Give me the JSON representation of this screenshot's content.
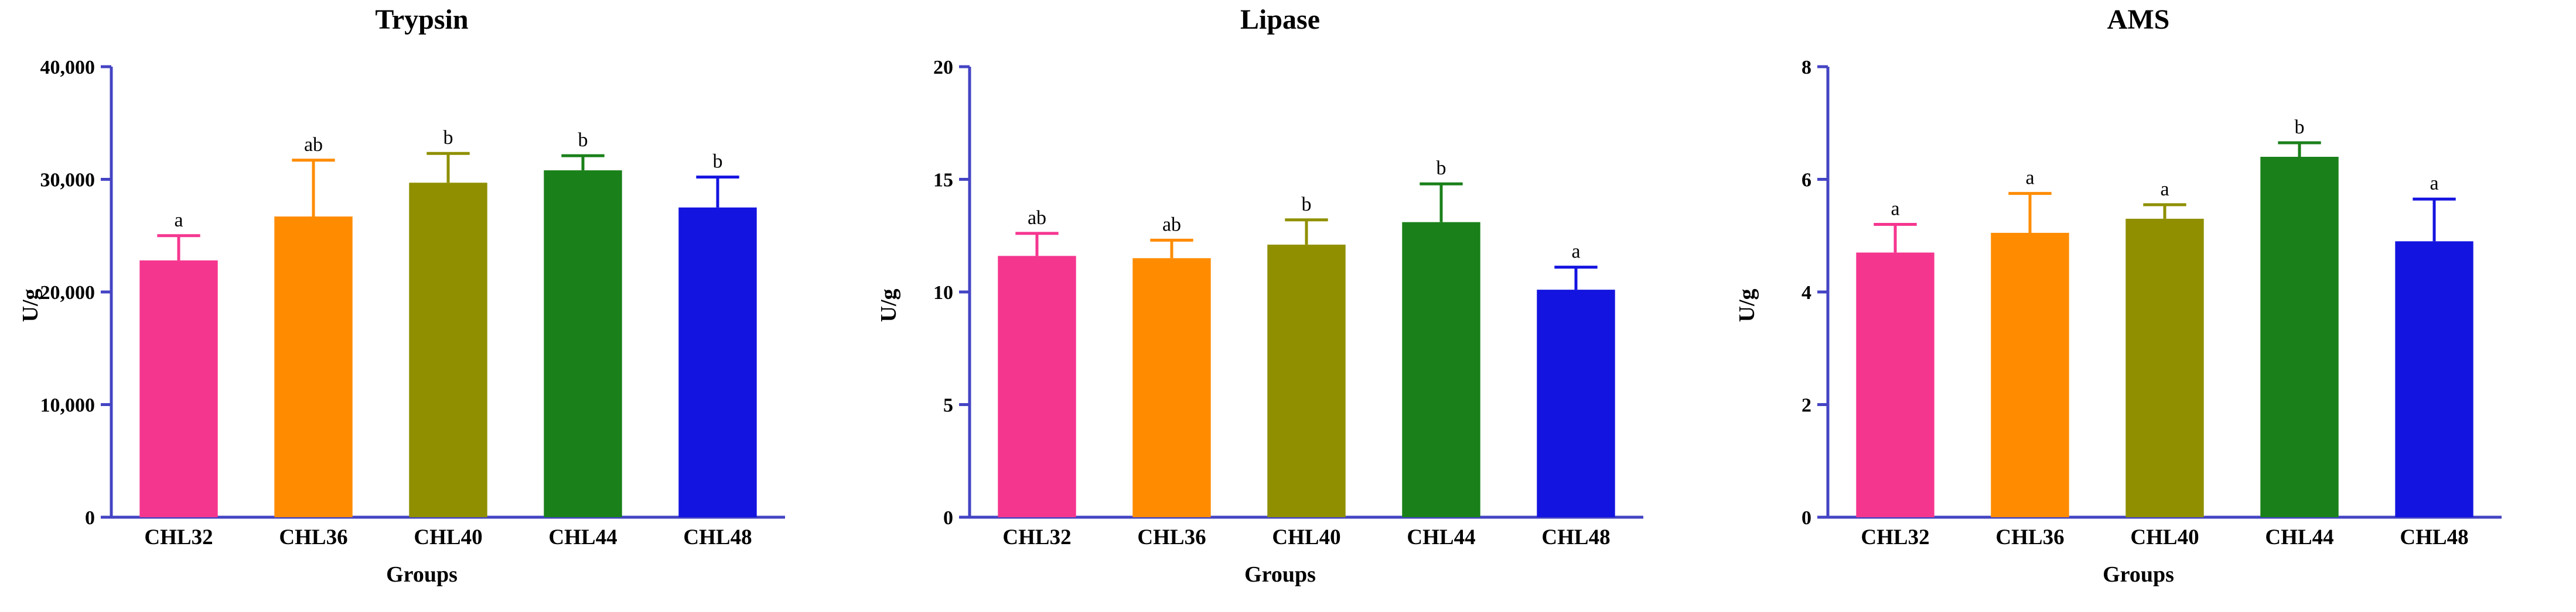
{
  "page": {
    "background": "#FFFFFF",
    "axis_color": "#4444C4",
    "text_color": "#000000"
  },
  "chart_data": [
    {
      "type": "bar",
      "title": "Trypsin",
      "xlabel": "Groups",
      "ylabel": "U/g",
      "categories": [
        "CHL32",
        "CHL36",
        "CHL40",
        "CHL44",
        "CHL48"
      ],
      "values": [
        22800,
        26700,
        29700,
        30800,
        27500
      ],
      "errors_up": [
        2200,
        5000,
        2600,
        1300,
        2700
      ],
      "sig_letters": [
        "a",
        "ab",
        "b",
        "b",
        "b"
      ],
      "colors": [
        "#F5368F",
        "#FF8C00",
        "#8F8F00",
        "#1A801A",
        "#1414E0"
      ],
      "ylim": [
        0,
        40000
      ],
      "ytick_step": 10000,
      "ytick_labels": [
        "0",
        "10,000",
        "20,000",
        "30,000",
        "40,000"
      ],
      "grid": false,
      "legend": "none"
    },
    {
      "type": "bar",
      "title": "Lipase",
      "xlabel": "Groups",
      "ylabel": "U/g",
      "categories": [
        "CHL32",
        "CHL36",
        "CHL40",
        "CHL44",
        "CHL48"
      ],
      "values": [
        11.6,
        11.5,
        12.1,
        13.1,
        10.1
      ],
      "errors_up": [
        1.0,
        0.8,
        1.1,
        1.7,
        1.0
      ],
      "sig_letters": [
        "ab",
        "ab",
        "b",
        "b",
        "a"
      ],
      "colors": [
        "#F5368F",
        "#FF8C00",
        "#8F8F00",
        "#1A801A",
        "#1414E0"
      ],
      "ylim": [
        0,
        20
      ],
      "ytick_step": 5,
      "ytick_labels": [
        "0",
        "5",
        "10",
        "15",
        "20"
      ],
      "grid": false,
      "legend": "none"
    },
    {
      "type": "bar",
      "title": "AMS",
      "xlabel": "Groups",
      "ylabel": "U/g",
      "categories": [
        "CHL32",
        "CHL36",
        "CHL40",
        "CHL44",
        "CHL48"
      ],
      "values": [
        4.7,
        5.05,
        5.3,
        6.4,
        4.9
      ],
      "errors_up": [
        0.5,
        0.7,
        0.25,
        0.25,
        0.75
      ],
      "sig_letters": [
        "a",
        "a",
        "a",
        "b",
        "a"
      ],
      "colors": [
        "#F5368F",
        "#FF8C00",
        "#8F8F00",
        "#1A801A",
        "#1414E0"
      ],
      "ylim": [
        0,
        8
      ],
      "ytick_step": 2,
      "ytick_labels": [
        "0",
        "2",
        "4",
        "6",
        "8"
      ],
      "grid": false,
      "legend": "none"
    }
  ]
}
